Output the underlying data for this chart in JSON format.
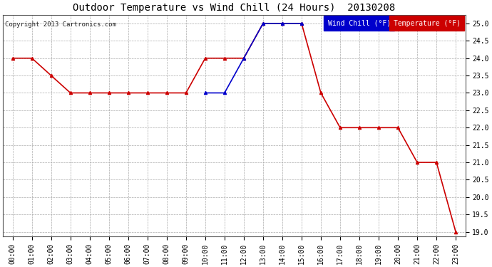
{
  "title": "Outdoor Temperature vs Wind Chill (24 Hours)  20130208",
  "copyright": "Copyright 2013 Cartronics.com",
  "background_color": "#ffffff",
  "plot_bg_color": "#ffffff",
  "grid_color": "#aaaaaa",
  "ylim": [
    18.875,
    25.25
  ],
  "yticks": [
    19.0,
    19.5,
    20.0,
    20.5,
    21.0,
    21.5,
    22.0,
    22.5,
    23.0,
    23.5,
    24.0,
    24.5,
    25.0
  ],
  "x_labels": [
    "00:00",
    "01:00",
    "02:00",
    "03:00",
    "04:00",
    "05:00",
    "06:00",
    "07:00",
    "08:00",
    "09:00",
    "10:00",
    "11:00",
    "12:00",
    "13:00",
    "14:00",
    "15:00",
    "16:00",
    "17:00",
    "18:00",
    "19:00",
    "20:00",
    "21:00",
    "22:00",
    "23:00"
  ],
  "temp_x": [
    0,
    1,
    2,
    3,
    4,
    5,
    6,
    7,
    8,
    9,
    10,
    11,
    12,
    13,
    14,
    15,
    16,
    17,
    18,
    19,
    20,
    21,
    22,
    23
  ],
  "temp_y": [
    24.0,
    24.0,
    23.5,
    23.0,
    23.0,
    23.0,
    23.0,
    23.0,
    23.0,
    23.0,
    24.0,
    24.0,
    24.0,
    25.0,
    25.0,
    25.0,
    23.0,
    22.0,
    22.0,
    22.0,
    22.0,
    21.0,
    21.0,
    19.0
  ],
  "wind_x": [
    10,
    11,
    12,
    13,
    14,
    15
  ],
  "wind_y": [
    23.0,
    23.0,
    24.0,
    25.0,
    25.0,
    25.0
  ],
  "temp_color": "#cc0000",
  "wind_color": "#0000cc",
  "legend_wind_bg": "#0000cc",
  "legend_temp_bg": "#cc0000",
  "legend_text_color": "#ffffff",
  "marker": "^",
  "marker_size": 3,
  "line_width": 1.2,
  "title_fontsize": 10,
  "tick_fontsize": 7,
  "copyright_fontsize": 6.5,
  "legend_fontsize": 7
}
